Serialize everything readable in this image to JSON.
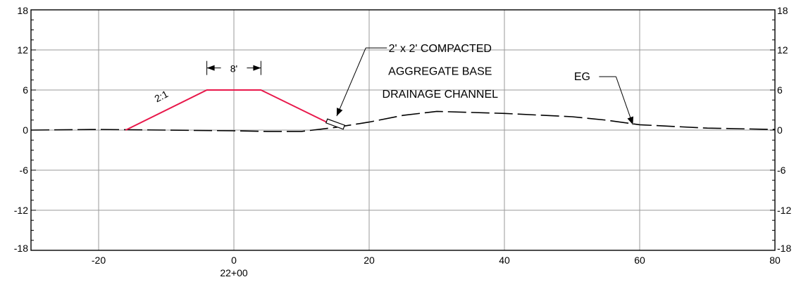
{
  "chart_data": {
    "type": "line",
    "xlim": [
      -30,
      80
    ],
    "ylim": [
      -18,
      18
    ],
    "x_ticks": [
      -20,
      0,
      20,
      40,
      60,
      80
    ],
    "y_ticks": [
      -18,
      -12,
      -6,
      0,
      6,
      12,
      18
    ],
    "y_tick_labels": [
      "-18",
      "-12",
      "-6",
      "0",
      "6",
      "12",
      "18"
    ],
    "x_tick_labels": [
      "-20",
      "0",
      "20",
      "40",
      "60",
      "80"
    ],
    "station_label": "22+00",
    "grid": true,
    "series": [
      {
        "style": "dashed",
        "color": "#000000",
        "x": [
          -30,
          -20,
          -10,
          0,
          5,
          10,
          15,
          20,
          25,
          30,
          40,
          50,
          55,
          60,
          70,
          80
        ],
        "y": [
          0,
          0.1,
          0,
          -0.1,
          -0.2,
          -0.2,
          0.4,
          1.2,
          2.2,
          2.8,
          2.5,
          2.0,
          1.5,
          0.8,
          0.3,
          0.1
        ]
      },
      {
        "style": "solid",
        "color": "#e8174a",
        "x": [
          -16,
          -4,
          4,
          14.5
        ],
        "y": [
          0,
          6,
          6,
          0.8
        ]
      }
    ],
    "annotations": {
      "slope": "2:1",
      "width": "8'",
      "channel_line1": "2' x 2' COMPACTED",
      "channel_line2": "AGGREGATE BASE",
      "channel_line3": "DRAINAGE CHANNEL",
      "eg": "EG"
    }
  }
}
